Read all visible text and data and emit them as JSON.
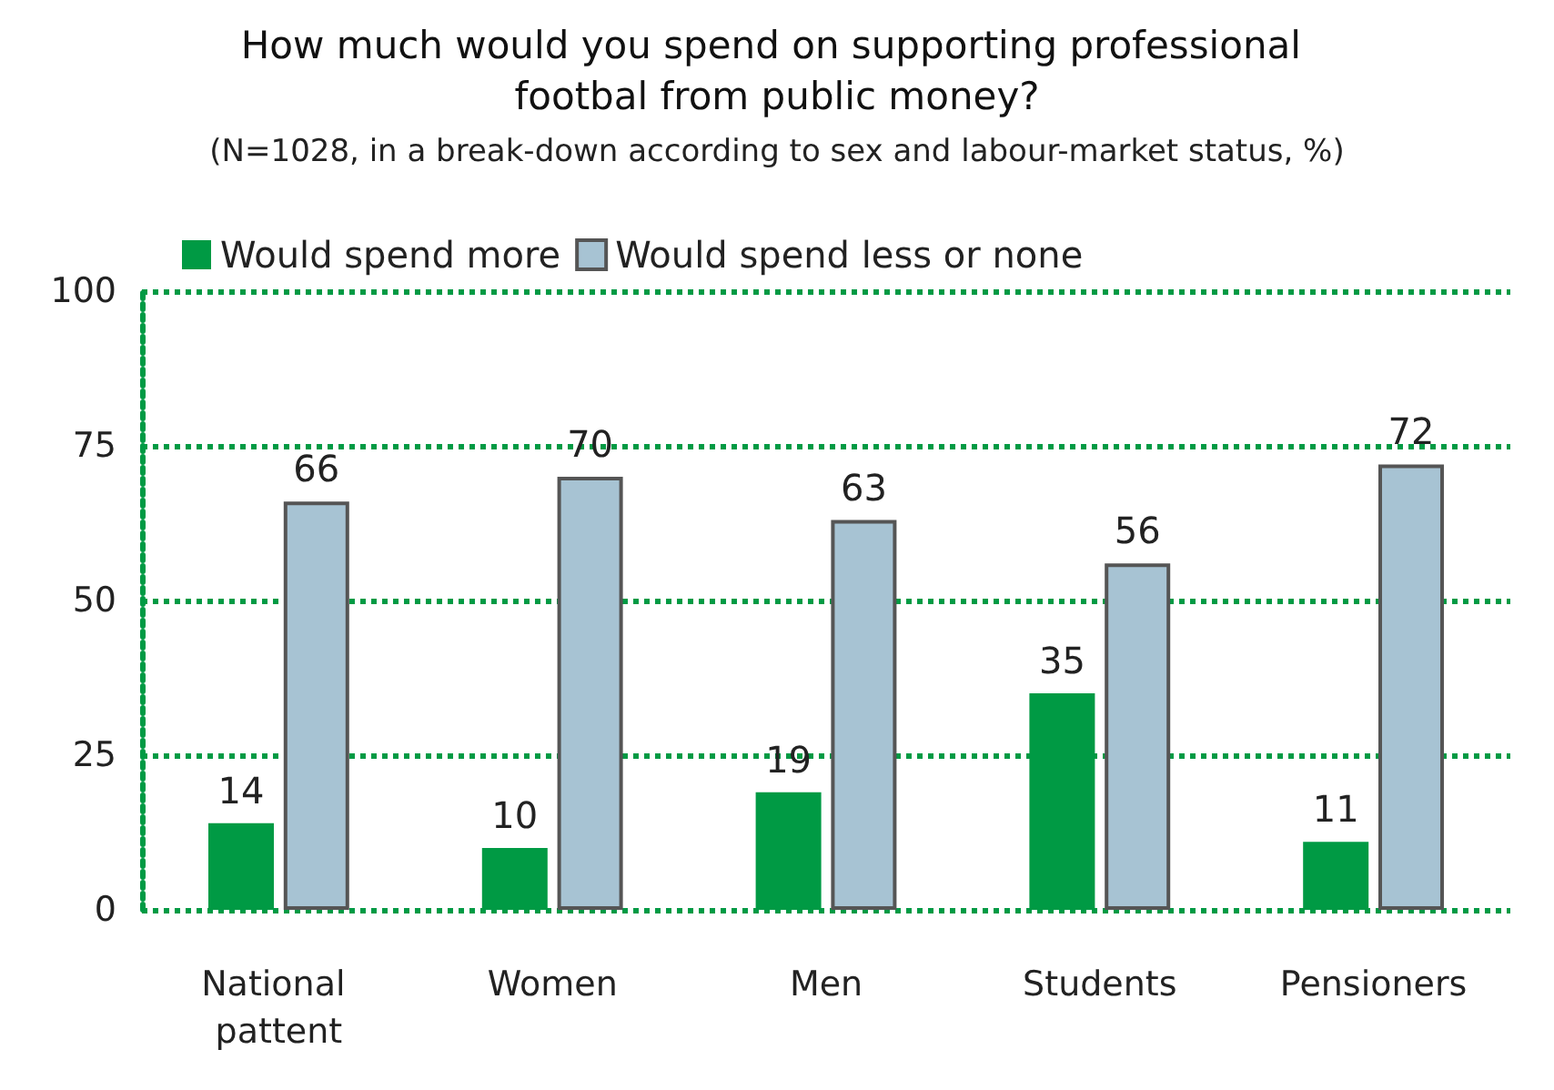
{
  "chart_data": {
    "type": "bar",
    "title": "How much would you spend on supporting professional footbal from public money?",
    "subtitle": "(N=1028, in a break-down according to sex and labour-market status, %)",
    "categories": [
      "National pattent",
      "Women",
      "Men",
      "Students",
      "Pensioners"
    ],
    "series": [
      {
        "name": "Would spend more",
        "color": "#009a44",
        "values": [
          14,
          10,
          19,
          35,
          11
        ]
      },
      {
        "name": "Would spend less or none",
        "color": "#a7c3d3",
        "values": [
          66,
          70,
          63,
          56,
          72
        ]
      }
    ],
    "ylim": [
      0,
      100
    ],
    "yticks": [
      0,
      25,
      50,
      75,
      100
    ],
    "grid": "y",
    "legend": "top left",
    "data_labels": true
  }
}
